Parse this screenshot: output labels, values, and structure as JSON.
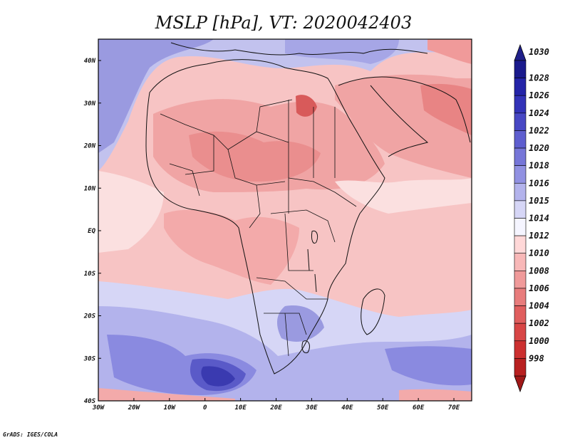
{
  "title": "MSLP [hPa], VT: 2020042403",
  "credit": "GrADS: IGES/COLA",
  "map": {
    "lon_ticks": [
      "30W",
      "20W",
      "10W",
      "0",
      "10E",
      "20E",
      "30E",
      "40E",
      "50E",
      "60E",
      "70E"
    ],
    "lat_ticks": [
      "40N",
      "30N",
      "20N",
      "10N",
      "EQ",
      "10S",
      "20S",
      "30S",
      "40S"
    ]
  },
  "colorbar": {
    "labels": [
      "1030",
      "1028",
      "1026",
      "1024",
      "1022",
      "1020",
      "1018",
      "1016",
      "1015",
      "1014",
      "1012",
      "1010",
      "1008",
      "1006",
      "1004",
      "1002",
      "1000",
      "998"
    ],
    "colors": [
      "#1a1a8c",
      "#2424a8",
      "#3333b8",
      "#4747c4",
      "#5e5ecf",
      "#7676d8",
      "#9191e2",
      "#b3b3ec",
      "#d6d6f6",
      "#f5f5ff",
      "#ffd8d8",
      "#f8b8b8",
      "#f09a9a",
      "#e87c7c",
      "#e05e5e",
      "#d84646",
      "#cc3030",
      "#b82020"
    ],
    "top_arrow": "#20208a",
    "bottom_arrow": "#a01818"
  }
}
